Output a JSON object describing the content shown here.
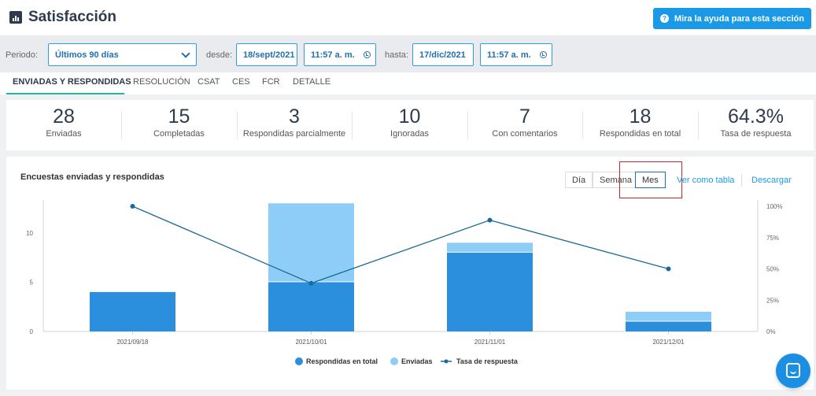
{
  "header": {
    "title": "Satisfacción",
    "help_label": "Mira la ayuda para esta sección",
    "help_icon": "question-circle-icon"
  },
  "filter": {
    "period_label": "Periodo:",
    "period_value": "Últimos 90 días",
    "from_label": "desde:",
    "from_date": "18/sept/2021",
    "from_time": "11:57 a. m.",
    "to_label": "hasta:",
    "to_date": "17/dic/2021",
    "to_time": "11:57 a. m."
  },
  "tabs": [
    "ENVIADAS Y RESPONDIDAS",
    "RESOLUCIÓN",
    "CSAT",
    "CES",
    "FCR",
    "DETALLE"
  ],
  "active_tab": 0,
  "stats": [
    {
      "value": "28",
      "label": "Enviadas"
    },
    {
      "value": "15",
      "label": "Completadas"
    },
    {
      "value": "3",
      "label": "Respondidas parcialmente"
    },
    {
      "value": "10",
      "label": "Ignoradas"
    },
    {
      "value": "7",
      "label": "Con comentarios"
    },
    {
      "value": "18",
      "label": "Respondidas en total"
    },
    {
      "value": "64.3%",
      "label": "Tasa de respuesta"
    }
  ],
  "card": {
    "title": "Encuestas enviadas y respondidas",
    "granularity": [
      "Día",
      "Semana",
      "Mes"
    ],
    "active_granularity": "Mes",
    "table_link": "Ver como tabla",
    "download_link": "Descargar"
  },
  "colors": {
    "responded": "#2b8fde",
    "sent": "#8fcdf9",
    "rate_line": "#1b6a96",
    "accent": "#1a9ae6",
    "tab_underline": "#2bb3a0",
    "highlight_box": "#c62828"
  },
  "chart_data": {
    "type": "bar",
    "stacked": true,
    "categories": [
      "2021/09/18",
      "2021/10/01",
      "2021/11/01",
      "2021/12/01"
    ],
    "series": [
      {
        "name": "Respondidas en total",
        "type": "bar",
        "values": [
          4,
          5,
          8,
          1
        ]
      },
      {
        "name": "Enviadas",
        "type": "bar",
        "values": [
          0,
          8,
          1,
          1
        ]
      },
      {
        "name": "Tasa de respuesta",
        "type": "line",
        "axis": "right",
        "values": [
          100,
          38.5,
          88.9,
          50
        ]
      }
    ],
    "y_left": {
      "ticks": [
        "0",
        "5",
        "10"
      ],
      "lim": [
        0,
        13.5
      ]
    },
    "y_right": {
      "ticks": [
        "0%",
        "25%",
        "50%",
        "75%",
        "100%"
      ],
      "lim": [
        0,
        100
      ]
    },
    "legend_position": "bottom",
    "grid": false
  }
}
